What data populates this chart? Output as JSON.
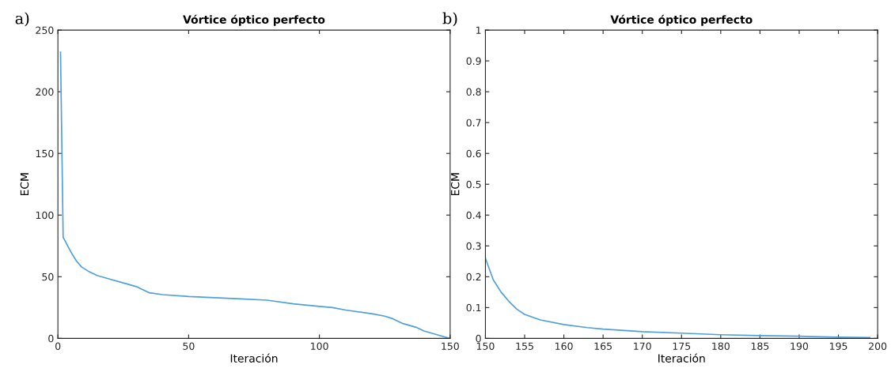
{
  "chart_data": [
    {
      "type": "line",
      "title": "Vórtice óptico perfecto",
      "xlabel": "Iteración",
      "ylabel": "ECM",
      "annotations": [
        "a)"
      ],
      "series": [
        {
          "color": "#4d9fde",
          "x": [
            1,
            2,
            3,
            5,
            7,
            9,
            12,
            15,
            20,
            25,
            30,
            32,
            35,
            40,
            50,
            60,
            70,
            80,
            90,
            100,
            105,
            110,
            120,
            125,
            128,
            132,
            137,
            140,
            145,
            149,
            150
          ],
          "values": [
            232,
            82,
            78,
            70,
            63,
            58,
            54,
            51,
            48,
            45,
            42,
            40,
            37,
            35.5,
            34,
            33,
            32,
            31,
            28,
            26,
            25,
            23,
            20,
            18,
            16,
            12,
            9,
            6,
            3,
            0.5,
            0
          ]
        }
      ],
      "xlim": [
        0,
        150
      ],
      "xticks": [
        0,
        50,
        100,
        150
      ],
      "ylim": [
        0,
        250
      ],
      "yticks": [
        0,
        50,
        100,
        150,
        200,
        250
      ],
      "grid": false,
      "legend": false
    },
    {
      "type": "line",
      "title": "Vórtice óptico perfecto",
      "xlabel": "Iteración",
      "ylabel": "ECM",
      "annotations": [
        "b)"
      ],
      "series": [
        {
          "color": "#4d9fde",
          "x": [
            150,
            151,
            152,
            153,
            154,
            155,
            157,
            160,
            163,
            165,
            170,
            175,
            180,
            185,
            190,
            195,
            199
          ],
          "values": [
            0.26,
            0.19,
            0.15,
            0.12,
            0.095,
            0.078,
            0.06,
            0.045,
            0.035,
            0.03,
            0.022,
            0.017,
            0.012,
            0.009,
            0.007,
            0.004,
            0.003
          ]
        }
      ],
      "xlim": [
        150,
        200
      ],
      "xticks": [
        150,
        155,
        160,
        165,
        170,
        175,
        180,
        185,
        190,
        195,
        200
      ],
      "ylim": [
        0,
        1
      ],
      "yticks": [
        0,
        0.1,
        0.2,
        0.3,
        0.4,
        0.5,
        0.6,
        0.7,
        0.8,
        0.9,
        1
      ],
      "grid": false,
      "legend": false
    }
  ]
}
